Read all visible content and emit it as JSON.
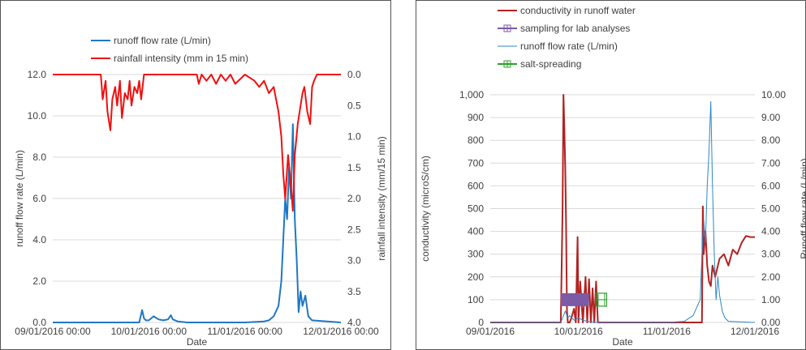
{
  "chart_data": [
    {
      "type": "line",
      "xlabel": "Date",
      "ylabel": "runoff flow rate (L/min)",
      "y2label": "rainfall intensity (mm/15 min)",
      "x_ticks": [
        "09/01/2016 00:00",
        "10/01/2016 00:00",
        "11/01/2016 00:00",
        "12/01/2016 00:00"
      ],
      "x_range": [
        0,
        3
      ],
      "y_ticks": [
        "0.0",
        "2.0",
        "4.0",
        "6.0",
        "8.0",
        "10.0",
        "12.0"
      ],
      "ylim": [
        0,
        12
      ],
      "y2_ticks": [
        "0.0",
        "0.5",
        "1.0",
        "1.5",
        "2.0",
        "2.5",
        "3.0",
        "3.5",
        "4.0"
      ],
      "y2lim": [
        0,
        4
      ],
      "y2_inverted": true,
      "grid": true,
      "legend_position": "top-left",
      "series": [
        {
          "name": "runoff flow rate (L/min)",
          "axis": "left",
          "color": "#1f77c4",
          "x": [
            0,
            0.9,
            0.93,
            0.95,
            0.97,
            1.0,
            1.05,
            1.1,
            1.15,
            1.2,
            1.23,
            1.25,
            1.3,
            1.4,
            2.0,
            2.2,
            2.25,
            2.3,
            2.35,
            2.38,
            2.4,
            2.42,
            2.44,
            2.46,
            2.48,
            2.5,
            2.52,
            2.54,
            2.56,
            2.58,
            2.6,
            2.63,
            2.66,
            2.7,
            3.0
          ],
          "y": [
            0,
            0,
            0.6,
            0.2,
            0.1,
            0.1,
            0.3,
            0.15,
            0.1,
            0.15,
            0.35,
            0.15,
            0.05,
            0,
            0,
            0.05,
            0.1,
            0.3,
            0.8,
            2.0,
            4.0,
            6.0,
            5.0,
            7.5,
            6.0,
            9.6,
            5.0,
            3.0,
            0.5,
            1.5,
            0.8,
            1.3,
            0.3,
            0.1,
            0
          ]
        },
        {
          "name": "rainfall intensity (mm in 15 min)",
          "axis": "right",
          "color": "#ee1111",
          "x": [
            0,
            0.5,
            0.52,
            0.55,
            0.57,
            0.6,
            0.62,
            0.65,
            0.67,
            0.7,
            0.72,
            0.75,
            0.78,
            0.8,
            0.82,
            0.85,
            0.88,
            0.9,
            0.92,
            0.95,
            1.0,
            1.5,
            1.52,
            1.55,
            1.6,
            1.65,
            1.7,
            1.75,
            1.8,
            1.85,
            1.9,
            2.0,
            2.1,
            2.15,
            2.2,
            2.25,
            2.3,
            2.35,
            2.38,
            2.4,
            2.42,
            2.45,
            2.48,
            2.5,
            2.52,
            2.55,
            2.58,
            2.6,
            2.62,
            2.65,
            2.68,
            2.7,
            2.72,
            2.75,
            3.0
          ],
          "y": [
            0,
            0,
            0.4,
            0.1,
            0.6,
            0.9,
            0.4,
            0.2,
            0.5,
            0.1,
            0.7,
            0.3,
            0.4,
            0.1,
            0.5,
            0.2,
            0.3,
            0.1,
            0.4,
            0,
            0,
            0,
            0.15,
            0,
            0.1,
            0,
            0.15,
            0,
            0.1,
            0,
            0.15,
            0,
            0.1,
            0.2,
            0.1,
            0.3,
            0.2,
            0.6,
            1.0,
            1.6,
            2.0,
            1.3,
            1.8,
            2.2,
            1.3,
            0.8,
            0.5,
            0.3,
            0.2,
            0.6,
            0.8,
            0.2,
            0.1,
            0,
            0
          ]
        }
      ]
    },
    {
      "type": "line",
      "xlabel": "Date",
      "ylabel": "conductivity (microS/cm)",
      "y2label": "Runoff flow rate (L/min)",
      "x_ticks": [
        "09/01/2016",
        "10/01/2016",
        "11/01/2016",
        "12/01/2016"
      ],
      "x_range": [
        0,
        3
      ],
      "y_ticks": [
        "0",
        "100",
        "200",
        "300",
        "400",
        "500",
        "600",
        "700",
        "800",
        "900",
        "1,000"
      ],
      "ylim": [
        0,
        1000
      ],
      "y2_ticks": [
        "0.00",
        "1.00",
        "2.00",
        "3.00",
        "4.00",
        "5.00",
        "6.00",
        "7.00",
        "8.00",
        "9.00",
        "10.00"
      ],
      "y2lim": [
        0,
        10
      ],
      "grid": true,
      "legend_position": "top-left",
      "series": [
        {
          "name": "conductivity in runoff water",
          "axis": "left",
          "color": "#b22222",
          "x": [
            0,
            0.8,
            0.82,
            0.83,
            0.84,
            0.85,
            0.86,
            0.87,
            0.88,
            0.9,
            0.92,
            0.95,
            0.97,
            0.99,
            1.0,
            1.02,
            1.05,
            1.08,
            1.1,
            1.12,
            1.14,
            1.16,
            1.18,
            1.2,
            1.22,
            1.25,
            2.35,
            2.4,
            2.41,
            2.42,
            2.44,
            2.46,
            2.48,
            2.5,
            2.52,
            2.55,
            2.6,
            2.65,
            2.7,
            2.75,
            2.8,
            2.85,
            2.9,
            2.95,
            3.0
          ],
          "y": [
            0,
            0,
            500,
            1000,
            850,
            680,
            400,
            50,
            0,
            0,
            20,
            60,
            0,
            375,
            0,
            180,
            0,
            200,
            0,
            190,
            0,
            150,
            0,
            180,
            0,
            0,
            0,
            0,
            510,
            300,
            400,
            250,
            180,
            160,
            250,
            200,
            280,
            300,
            250,
            320,
            300,
            350,
            380,
            375,
            375
          ]
        },
        {
          "name": "sampling for lab analyses",
          "axis": "left",
          "color": "#7b5aa6",
          "x": [
            0.8,
            1.12
          ],
          "y": [
            100,
            100
          ]
        },
        {
          "name": "runoff flow rate (L/min)",
          "axis": "right",
          "color": "#2c87c8",
          "x": [
            0,
            0.8,
            0.85,
            0.88,
            0.9,
            0.95,
            1.0,
            1.05,
            1.1,
            1.2,
            2.0,
            2.2,
            2.3,
            2.38,
            2.4,
            2.42,
            2.44,
            2.46,
            2.48,
            2.5,
            2.52,
            2.54,
            2.56,
            2.58,
            2.6,
            2.63,
            2.66,
            2.7,
            3.0
          ],
          "y": [
            0,
            0,
            0.5,
            0.2,
            0.3,
            0.1,
            0.2,
            0.1,
            0.05,
            0,
            0,
            0.05,
            0.3,
            1.0,
            3.0,
            4.5,
            3.5,
            6.0,
            7.5,
            9.7,
            6.0,
            3.0,
            1.0,
            2.0,
            1.2,
            0.5,
            0.2,
            0.05,
            0
          ]
        },
        {
          "name": "salt-spreading",
          "axis": "left",
          "color": "#2ca02c",
          "x": [
            1.2,
            1.32
          ],
          "y": [
            100,
            100
          ]
        }
      ]
    }
  ]
}
